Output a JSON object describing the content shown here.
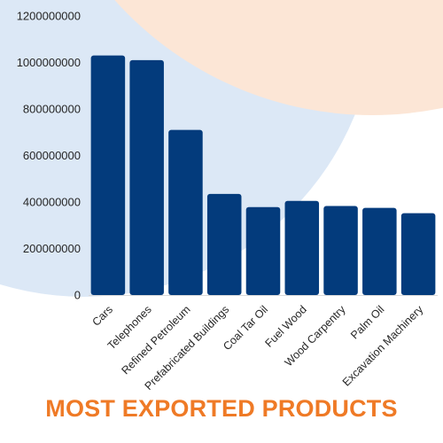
{
  "colors": {
    "bar": "#033B7C",
    "title": "#EF7A26",
    "bg_circle_blue": "#DCE8F6",
    "bg_circle_peach": "#FCE6D6",
    "axis_line": "#D9D9D9"
  },
  "chart_data": {
    "type": "bar",
    "title": "MOST EXPORTED PRODUCTS",
    "xlabel": "",
    "ylabel": "",
    "ylim": [
      0,
      1200000000
    ],
    "yticks": [
      0,
      200000000,
      400000000,
      600000000,
      800000000,
      1000000000,
      1200000000
    ],
    "grid": false,
    "legend": "none",
    "categories": [
      "Cars",
      "Telephones",
      "Refined Petroleum",
      "Prefabricated Buildings",
      "Coal Tar Oil",
      "Fuel Wood",
      "Wood Carpentry",
      "Palm Oil",
      "Excavation Machinery"
    ],
    "values": [
      1030000000,
      1010000000,
      710000000,
      435000000,
      378000000,
      405000000,
      383000000,
      375000000,
      352000000
    ]
  }
}
